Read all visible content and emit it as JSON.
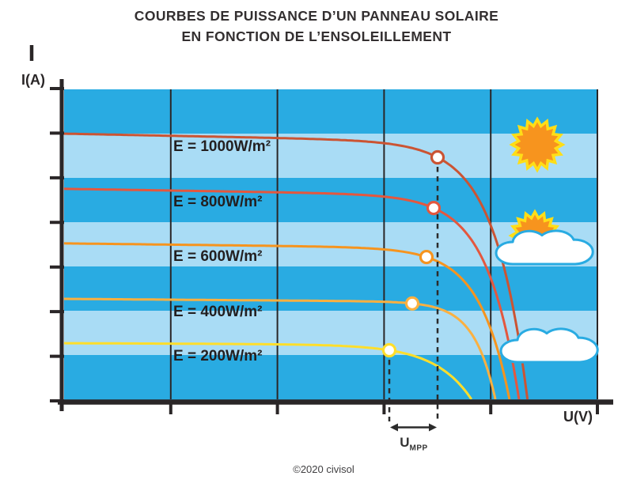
{
  "title": {
    "line1": "COURBES DE PUISSANCE D’UN PANNEAU SOLAIRE",
    "line2": "EN FONCTION DE L’ENSOLEILLEMENT"
  },
  "footer": {
    "copyright": "©2020 civisol"
  },
  "chart_data": {
    "type": "line",
    "title": "COURBES DE PUISSANCE D’UN PANNEAU SOLAIRE EN FONCTION DE L’ENSOLEILLEMENT",
    "xlabel": "U(V)",
    "ylabel": "I(A)",
    "x_axis": {
      "numeric_tick_labels": false,
      "gridline_count": 5
    },
    "y_axis": {
      "numeric_tick_labels": false,
      "tick_count": 8
    },
    "legend_position": "labels-on-curves",
    "series": [
      {
        "label": "E = 1000W/m²",
        "irradiance_w_m2": 1000,
        "color": "#CB5433",
        "isc": 0.857,
        "voc": 0.871,
        "mpp_u": 0.7003,
        "knee_w": 0.0611
      },
      {
        "label": "E = 800W/m²",
        "irradiance_w_m2": 800,
        "color": "#E4573E",
        "isc": 0.679,
        "voc": 0.855,
        "mpp_u": 0.6929,
        "knee_w": 0.0588
      },
      {
        "label": "E = 600W/m²",
        "irradiance_w_m2": 600,
        "color": "#F6941E",
        "isc": 0.503,
        "voc": 0.837,
        "mpp_u": 0.6795,
        "knee_w": 0.0561
      },
      {
        "label": "E = 400W/m²",
        "irradiance_w_m2": 400,
        "color": "#FBB040",
        "isc": 0.324,
        "voc": 0.81,
        "mpp_u": 0.6528,
        "knee_w": 0.0401
      },
      {
        "label": "E = 200W/m²",
        "irradiance_w_m2": 200,
        "color": "#FFDE2B",
        "isc": 0.181,
        "voc": 0.766,
        "mpp_u": 0.6098,
        "knee_w": 0.0685
      }
    ],
    "series_slope_k": 0.04,
    "annotation": {
      "u_label": "U",
      "u_sub": "MPP",
      "u_min": 0.6098,
      "u_max": 0.7003
    },
    "colors": {
      "stripe_dark": "#29ABE2",
      "stripe_light": "#A9DCF5",
      "axis": "#2A2627",
      "dashed": "#2B2B2B",
      "sun_fill": "#F7941E",
      "sun_stroke": "#FFDE17",
      "cloud_fill": "#FFFFFF",
      "cloud_stroke": "#29ABE2",
      "mpp_dot_fill": "#FFFFFF"
    },
    "icons": [
      {
        "name": "sun-icon",
        "meaning": "full sun (1000 W/m²)"
      },
      {
        "name": "sun-cloud-icon",
        "meaning": "partly cloudy"
      },
      {
        "name": "cloud-icon",
        "meaning": "overcast"
      }
    ]
  }
}
